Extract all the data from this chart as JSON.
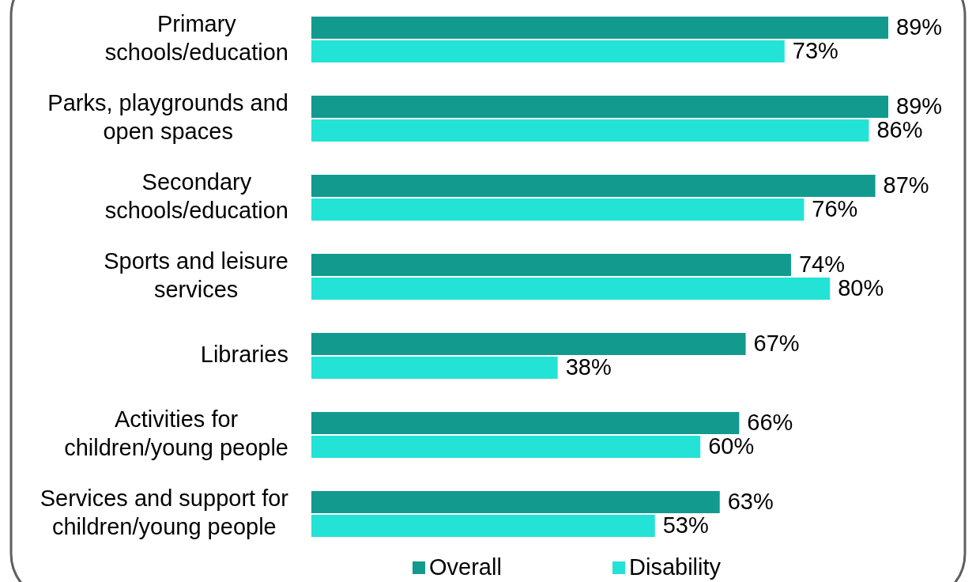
{
  "chart_data": {
    "type": "bar",
    "orientation": "horizontal",
    "categories": [
      "Primary\nschools/education",
      "Parks, playgrounds and\nopen spaces",
      "Secondary\nschools/education",
      "Sports and leisure\nservices",
      "Libraries",
      "Activities for\nchildren/young people",
      "Services and support for\nchildren/young people"
    ],
    "series": [
      {
        "name": "Overall",
        "color": "#139a8f",
        "values": [
          89,
          89,
          87,
          74,
          67,
          66,
          63
        ],
        "value_labels": [
          "89%",
          "89%",
          "87%",
          "74%",
          "67%",
          "66%",
          "63%"
        ]
      },
      {
        "name": "Disability",
        "color": "#22e3d6",
        "values": [
          73,
          86,
          76,
          80,
          38,
          60,
          53
        ],
        "value_labels": [
          "73%",
          "86%",
          "76%",
          "80%",
          "38%",
          "60%",
          "53%"
        ]
      }
    ],
    "tick_labels": "y",
    "legend": "bottom"
  }
}
